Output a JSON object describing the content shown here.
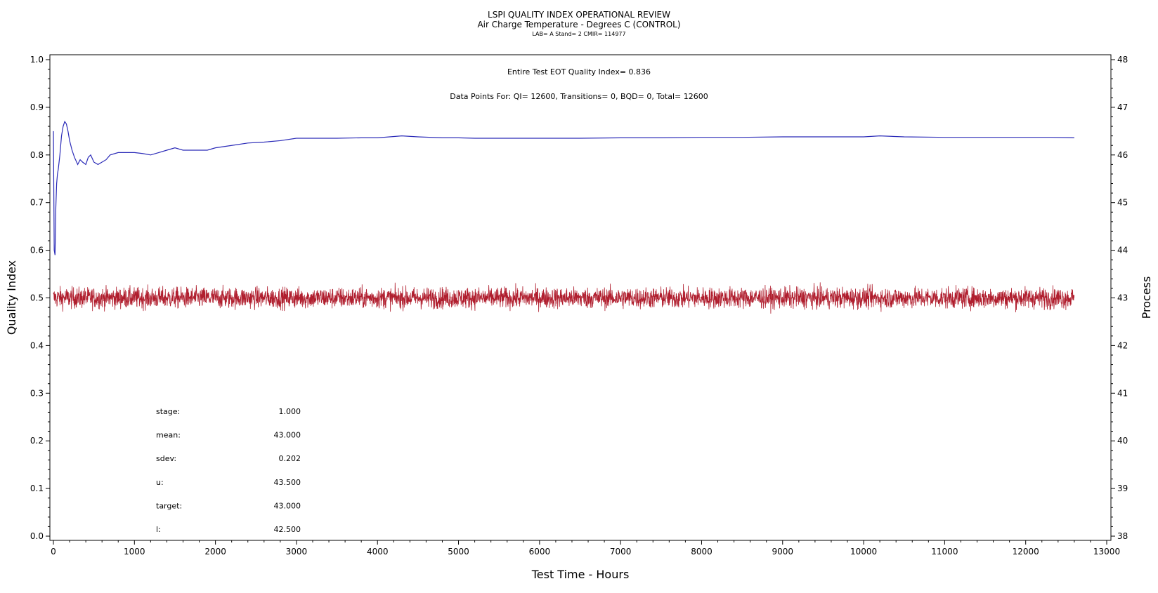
{
  "chart_data": {
    "type": "line",
    "title": "LSPI QUALITY INDEX OPERATIONAL REVIEW",
    "subtitle": "Air Charge Temperature - Degrees C (CONTROL)",
    "subtitle2": "LAB= A Stand= 2 CMIR= 114977",
    "annotation_qi": "Entire Test EOT Quality Index=   0.836",
    "annotation_points": "Data Points For: QI= 12600, Transitions=      0, BQD=      0, Total= 12600",
    "xlabel": "Test Time - Hours",
    "ylabel": "Quality Index",
    "y2label": "Process",
    "xlim": [
      0,
      13000
    ],
    "ylim": [
      0.0,
      1.0
    ],
    "y2lim": [
      38,
      48
    ],
    "x_ticks": [
      "0",
      "1000",
      "2000",
      "3000",
      "4000",
      "5000",
      "6000",
      "7000",
      "8000",
      "9000",
      "10000",
      "11000",
      "12000",
      "13000"
    ],
    "y_ticks": [
      "0.0",
      "0.1",
      "0.2",
      "0.3",
      "0.4",
      "0.5",
      "0.6",
      "0.7",
      "0.8",
      "0.9",
      "1.0"
    ],
    "y2_ticks": [
      "38",
      "39",
      "40",
      "41",
      "42",
      "43",
      "44",
      "45",
      "46",
      "47",
      "48"
    ],
    "grid": false,
    "colors": {
      "quality_index": "#2b2bb8",
      "process": "#b01e2e"
    },
    "series": [
      {
        "axis": "left",
        "x": [
          0,
          10,
          20,
          30,
          40,
          50,
          60,
          80,
          100,
          120,
          140,
          160,
          180,
          200,
          230,
          260,
          300,
          330,
          360,
          400,
          430,
          460,
          500,
          550,
          600,
          650,
          700,
          800,
          900,
          1000,
          1100,
          1200,
          1300,
          1400,
          1500,
          1600,
          1700,
          1800,
          1900,
          2000,
          2200,
          2400,
          2600,
          2800,
          3000,
          3200,
          3500,
          3800,
          4000,
          4300,
          4500,
          4800,
          5000,
          5200,
          5500,
          6000,
          6500,
          7000,
          7500,
          8000,
          8500,
          9000,
          9500,
          10000,
          10200,
          10500,
          11000,
          11500,
          12000,
          12300,
          12600
        ],
        "values": [
          0.85,
          0.6,
          0.59,
          0.69,
          0.74,
          0.76,
          0.77,
          0.8,
          0.84,
          0.86,
          0.87,
          0.865,
          0.85,
          0.83,
          0.81,
          0.795,
          0.78,
          0.79,
          0.785,
          0.78,
          0.795,
          0.8,
          0.785,
          0.78,
          0.785,
          0.79,
          0.8,
          0.805,
          0.805,
          0.805,
          0.803,
          0.8,
          0.805,
          0.81,
          0.815,
          0.81,
          0.81,
          0.81,
          0.81,
          0.815,
          0.82,
          0.825,
          0.827,
          0.83,
          0.835,
          0.835,
          0.835,
          0.836,
          0.836,
          0.84,
          0.838,
          0.836,
          0.836,
          0.835,
          0.835,
          0.835,
          0.835,
          0.836,
          0.836,
          0.837,
          0.837,
          0.838,
          0.838,
          0.838,
          0.84,
          0.838,
          0.837,
          0.837,
          0.837,
          0.837,
          0.836
        ]
      },
      {
        "axis": "right",
        "mean": 43.0,
        "sdev": 0.202,
        "range": [
          42.4,
          43.6
        ],
        "count": 12600,
        "x_range": [
          0,
          12600
        ]
      }
    ],
    "stats": [
      {
        "label": "stage:",
        "value": "1.000"
      },
      {
        "label": "mean:",
        "value": "43.000"
      },
      {
        "label": "sdev:",
        "value": "0.202"
      },
      {
        "label": "u:",
        "value": "43.500"
      },
      {
        "label": "target:",
        "value": "43.000"
      },
      {
        "label": "l:",
        "value": "42.500"
      }
    ]
  }
}
